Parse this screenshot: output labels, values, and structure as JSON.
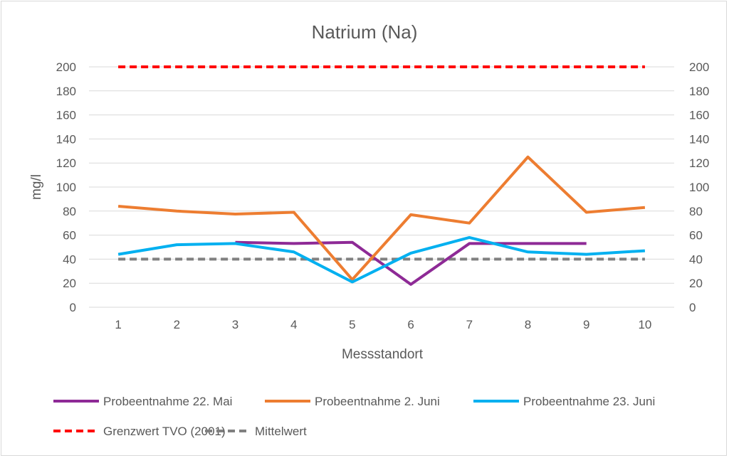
{
  "chart_data": {
    "type": "line",
    "title": "Natrium (Na)",
    "xlabel": "Messstandort",
    "ylabel": "mg/l",
    "categories": [
      "1",
      "2",
      "3",
      "4",
      "5",
      "6",
      "7",
      "8",
      "9",
      "10"
    ],
    "ylim": [
      0,
      200
    ],
    "yticks": [
      "0",
      "20",
      "40",
      "60",
      "80",
      "100",
      "120",
      "140",
      "160",
      "180",
      "200"
    ],
    "grid": true,
    "legend_position": "bottom",
    "series": [
      {
        "name": "Probeentnahme 22. Mai",
        "color": "#8E2A96",
        "dash": false,
        "values": [
          null,
          null,
          54,
          53,
          54,
          19,
          53,
          53,
          53,
          null
        ]
      },
      {
        "name": "Probeentnahme 2. Juni",
        "color": "#ED7D31",
        "dash": false,
        "values": [
          84,
          80,
          77.5,
          79,
          23,
          77,
          70,
          125,
          79,
          83
        ]
      },
      {
        "name": "Probeentnahme 23. Juni",
        "color": "#00B0F0",
        "dash": false,
        "values": [
          44,
          52,
          53,
          46,
          21,
          45,
          58,
          46,
          44,
          47
        ]
      },
      {
        "name": "Grenzwert TVO (2001)",
        "color": "#FF0000",
        "dash": true,
        "values": [
          200,
          200,
          200,
          200,
          200,
          200,
          200,
          200,
          200,
          200
        ]
      },
      {
        "name": "Mittelwert",
        "color": "#808080",
        "dash": true,
        "values": [
          40,
          40,
          40,
          40,
          40,
          40,
          40,
          40,
          40,
          40
        ]
      }
    ]
  }
}
